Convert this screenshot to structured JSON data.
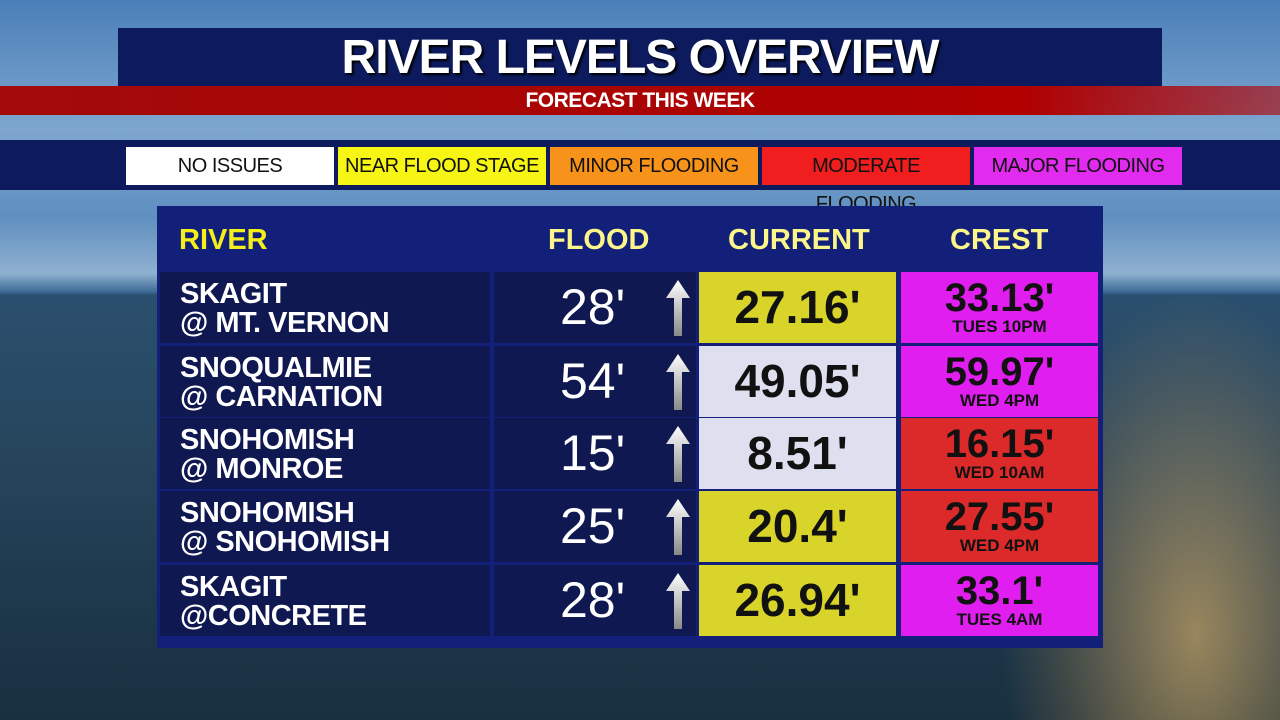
{
  "title": "RIVER LEVELS OVERVIEW",
  "subtitle": "FORECAST THIS WEEK",
  "legend": [
    {
      "label": "NO ISSUES",
      "color": "#ffffff"
    },
    {
      "label": "NEAR FLOOD STAGE",
      "color": "#f6f514"
    },
    {
      "label": "MINOR FLOODING",
      "color": "#f7931a"
    },
    {
      "label": "MODERATE FLOODING",
      "color": "#f01e1e"
    },
    {
      "label": "MAJOR FLOODING",
      "color": "#e12bee"
    }
  ],
  "headers": {
    "river": "RIVER",
    "flood": "FLOOD",
    "current": "CURRENT",
    "crest": "CREST"
  },
  "rows": [
    {
      "river1": "SKAGIT",
      "river2": "@ MT. VERNON",
      "flood": "28'",
      "trend": "arrow-up",
      "current": "27.16'",
      "current_color": "#d9d42a",
      "crest": "33.13'",
      "crest_time": "TUES 10PM",
      "crest_color": "#e01ef0"
    },
    {
      "river1": "SNOQUALMIE",
      "river2": "@ CARNATION",
      "flood": "54'",
      "trend": "arrow-up",
      "current": "49.05'",
      "current_color": "#dfe0ef",
      "crest": "59.97'",
      "crest_time": "WED 4PM",
      "crest_color": "#e01ef0"
    },
    {
      "river1": "SNOHOMISH",
      "river2": "@ MONROE",
      "flood": "15'",
      "trend": "arrow-up",
      "current": "8.51'",
      "current_color": "#dfe0ef",
      "crest": "16.15'",
      "crest_time": "WED 10AM",
      "crest_color": "#dc2a2a"
    },
    {
      "river1": "SNOHOMISH",
      "river2": "@ SNOHOMISH",
      "flood": "25'",
      "trend": "arrow-up",
      "current": "20.4'",
      "current_color": "#d9d42a",
      "crest": "27.55'",
      "crest_time": "WED 4PM",
      "crest_color": "#dc2a2a"
    },
    {
      "river1": "SKAGIT",
      "river2": "@CONCRETE",
      "flood": "28'",
      "trend": "arrow-up",
      "current": "26.94'",
      "current_color": "#d9d42a",
      "crest": "33.1'",
      "crest_time": "TUES 4AM",
      "crest_color": "#e01ef0"
    }
  ]
}
